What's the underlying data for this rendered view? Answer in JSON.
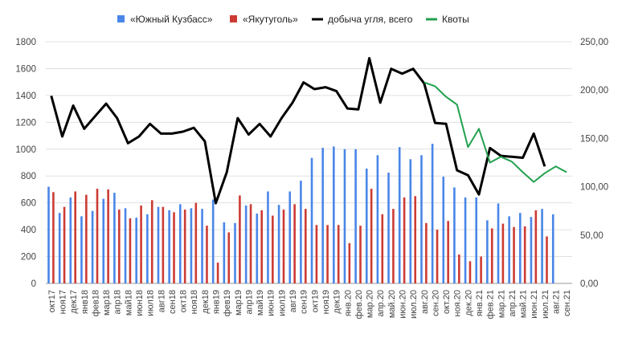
{
  "chart_data": {
    "type": "bar",
    "categories": [
      "окт17",
      "ноя17",
      "дек17",
      "янв18",
      "фев18",
      "мар18",
      "апр18",
      "май18",
      "июн18",
      "июл18",
      "авг18",
      "сен18",
      "окт18",
      "ноя18",
      "дек18",
      "янв19",
      "фев19",
      "мар19",
      "апр19",
      "май19",
      "июн19",
      "июл19",
      "авг19",
      "сен19",
      "окт19",
      "ноя19",
      "дек19",
      "янв.20",
      "фев.20",
      "мар.20",
      "апр.20",
      "май.20",
      "июн.20",
      "июл.20",
      "авг.20",
      "сен.20",
      "окт.20",
      "ноя.20",
      "дек.20",
      "янв.21",
      "фев.21",
      "мар.21",
      "апр.21",
      "май.21",
      "июн.21",
      "июл.21",
      "авг.21",
      "сен.21"
    ],
    "legend": [
      "«Южный Кузбасс»",
      "«Якутуголь»",
      "добыча угля, всего",
      "Квоты"
    ],
    "colors": {
      "south_kuzbass": "#4a86e8",
      "yakutugol": "#cc3b33",
      "total": "#000000",
      "quotas": "#22a14f"
    },
    "left_axis": {
      "ticks": [
        "0",
        "200",
        "400",
        "600",
        "800",
        "1000",
        "1200",
        "1400",
        "1600",
        "1800"
      ],
      "ylim": [
        0,
        1800
      ]
    },
    "right_axis": {
      "ticks": [
        "0,00",
        "50,00",
        "100,00",
        "150,00",
        "200,00",
        "250,00"
      ],
      "ylim": [
        0,
        250
      ]
    },
    "series": [
      {
        "name": "«Южный Кузбасс»",
        "type": "bar",
        "axis": "left",
        "values": [
          720,
          525,
          640,
          500,
          540,
          630,
          675,
          560,
          490,
          515,
          570,
          545,
          590,
          560,
          555,
          625,
          455,
          450,
          580,
          520,
          685,
          585,
          685,
          765,
          935,
          1010,
          1020,
          1000,
          1000,
          855,
          955,
          825,
          1015,
          925,
          955,
          1040,
          795,
          715,
          640,
          640,
          470,
          595,
          500,
          525,
          495,
          555,
          515,
          null
        ]
      },
      {
        "name": "«Якутуголь»",
        "type": "bar",
        "axis": "left",
        "values": [
          680,
          570,
          685,
          660,
          705,
          700,
          550,
          485,
          580,
          620,
          570,
          530,
          550,
          600,
          430,
          155,
          380,
          655,
          590,
          545,
          505,
          550,
          590,
          555,
          435,
          435,
          435,
          300,
          430,
          705,
          515,
          555,
          640,
          650,
          450,
          400,
          465,
          215,
          165,
          200,
          410,
          445,
          420,
          425,
          545,
          350,
          null,
          null
        ]
      },
      {
        "name": "добыча угля, всего",
        "type": "line",
        "axis": "right",
        "values": [
          194,
          152,
          184,
          160,
          173,
          186,
          171,
          145,
          152,
          165,
          155,
          155,
          157,
          161,
          147,
          83,
          115,
          171,
          154,
          165,
          152,
          171,
          187,
          208,
          201,
          203,
          199,
          181,
          180,
          233,
          187,
          222,
          217,
          222,
          207,
          166,
          165,
          117,
          112,
          92,
          140,
          132,
          131,
          130,
          155,
          121,
          null,
          null
        ]
      },
      {
        "name": "Квоты",
        "type": "line",
        "axis": "right",
        "values": [
          null,
          null,
          null,
          null,
          null,
          null,
          null,
          null,
          null,
          null,
          null,
          null,
          null,
          null,
          null,
          null,
          null,
          null,
          null,
          null,
          null,
          null,
          null,
          null,
          null,
          null,
          null,
          null,
          null,
          null,
          null,
          null,
          null,
          null,
          208,
          204,
          193,
          185,
          141,
          160,
          125,
          131,
          126,
          115,
          105,
          114,
          121,
          115
        ]
      }
    ],
    "grid": true,
    "legend_position": "top"
  }
}
